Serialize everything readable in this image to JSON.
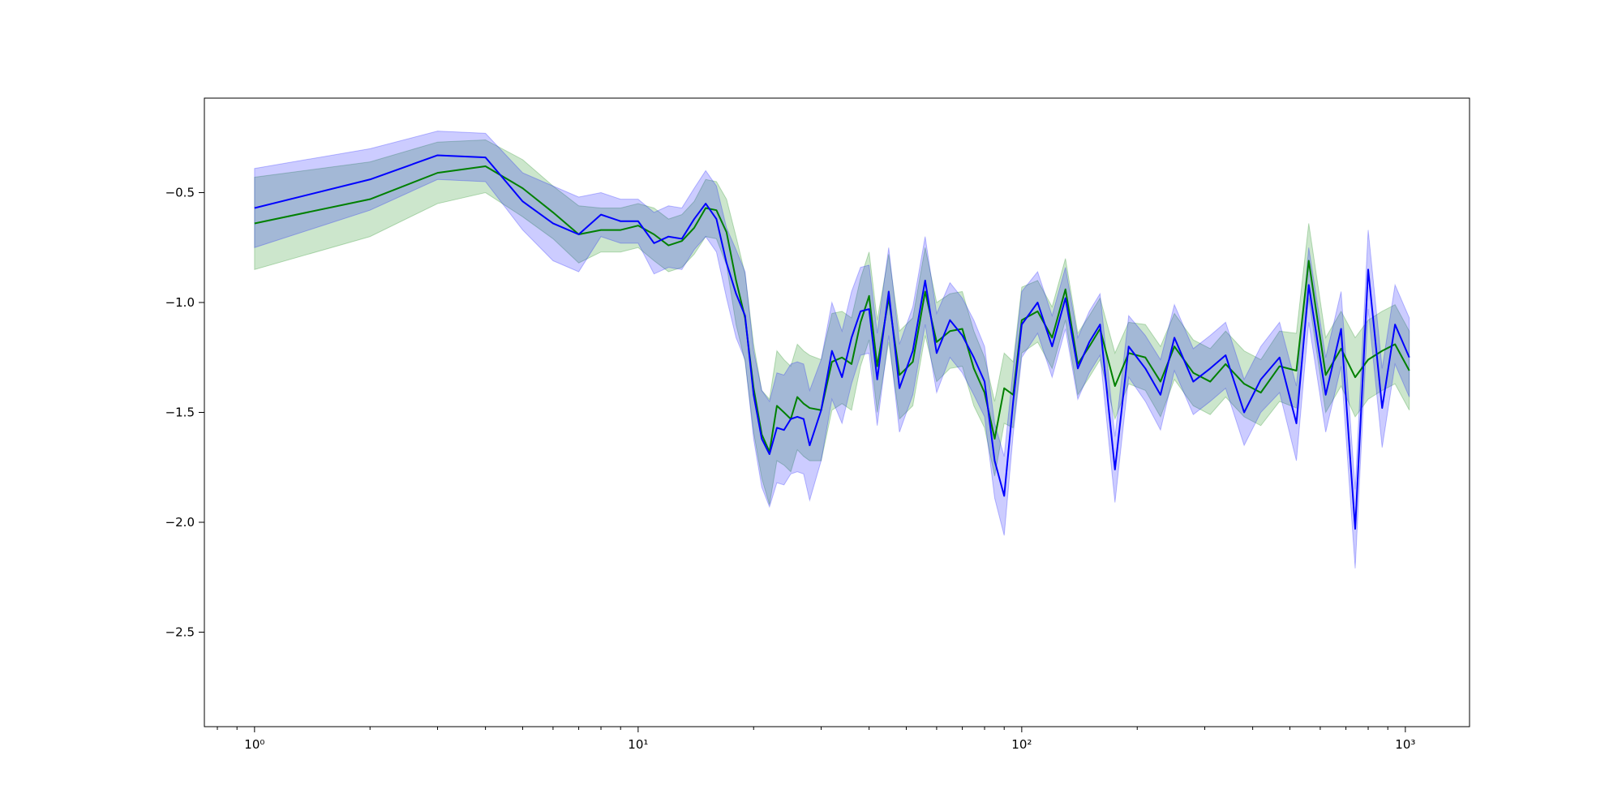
{
  "chart_data": {
    "type": "line",
    "title": "",
    "xlabel": "",
    "ylabel": "",
    "xscale": "log",
    "xlim": [
      0.74,
      1470
    ],
    "ylim": [
      -2.93,
      -0.07
    ],
    "grid": false,
    "legend": "none",
    "x_ticks": [
      {
        "value": 1,
        "label": "10⁰"
      },
      {
        "value": 10,
        "label": "10¹"
      },
      {
        "value": 100,
        "label": "10²"
      },
      {
        "value": 1000,
        "label": "10³"
      }
    ],
    "y_ticks": [
      {
        "value": -0.5,
        "label": "−0.5"
      },
      {
        "value": -1.0,
        "label": "−1.0"
      },
      {
        "value": -1.5,
        "label": "−1.5"
      },
      {
        "value": -2.0,
        "label": "−2.0"
      },
      {
        "value": -2.5,
        "label": "−2.5"
      }
    ],
    "series": [
      {
        "color": "#008000",
        "band_color": "#008000",
        "band_opacity": 0.2,
        "points": [
          [
            1,
            -0.64,
            0.21
          ],
          [
            2,
            -0.53,
            0.17
          ],
          [
            3,
            -0.41,
            0.14
          ],
          [
            4,
            -0.38,
            0.12
          ],
          [
            5,
            -0.48,
            0.13
          ],
          [
            6,
            -0.59,
            0.12
          ],
          [
            7,
            -0.69,
            0.13
          ],
          [
            8,
            -0.67,
            0.1
          ],
          [
            9,
            -0.67,
            0.1
          ],
          [
            10,
            -0.65,
            0.1
          ],
          [
            11,
            -0.69,
            0.12
          ],
          [
            12,
            -0.74,
            0.12
          ],
          [
            13,
            -0.72,
            0.12
          ],
          [
            14,
            -0.66,
            0.12
          ],
          [
            15,
            -0.57,
            0.13
          ],
          [
            16,
            -0.58,
            0.13
          ],
          [
            17,
            -0.68,
            0.15
          ],
          [
            18,
            -0.9,
            0.2
          ],
          [
            19,
            -1.07,
            0.2
          ],
          [
            20,
            -1.39,
            0.2
          ],
          [
            21,
            -1.6,
            0.2
          ],
          [
            22,
            -1.68,
            0.24
          ],
          [
            23,
            -1.47,
            0.25
          ],
          [
            24,
            -1.5,
            0.24
          ],
          [
            25,
            -1.53,
            0.24
          ],
          [
            26,
            -1.43,
            0.24
          ],
          [
            27,
            -1.46,
            0.24
          ],
          [
            28,
            -1.48,
            0.24
          ],
          [
            30,
            -1.49,
            0.23
          ],
          [
            32,
            -1.27,
            0.22
          ],
          [
            34,
            -1.25,
            0.21
          ],
          [
            36,
            -1.28,
            0.21
          ],
          [
            38,
            -1.09,
            0.2
          ],
          [
            40,
            -0.97,
            0.2
          ],
          [
            42,
            -1.29,
            0.21
          ],
          [
            45,
            -0.98,
            0.2
          ],
          [
            48,
            -1.33,
            0.2
          ],
          [
            52,
            -1.27,
            0.2
          ],
          [
            56,
            -0.95,
            0.2
          ],
          [
            60,
            -1.18,
            0.18
          ],
          [
            65,
            -1.13,
            0.17
          ],
          [
            70,
            -1.12,
            0.17
          ],
          [
            75,
            -1.3,
            0.17
          ],
          [
            80,
            -1.41,
            0.16
          ],
          [
            85,
            -1.62,
            0.17
          ],
          [
            90,
            -1.39,
            0.16
          ],
          [
            95,
            -1.42,
            0.15
          ],
          [
            100,
            -1.08,
            0.15
          ],
          [
            110,
            -1.04,
            0.14
          ],
          [
            120,
            -1.16,
            0.14
          ],
          [
            130,
            -0.94,
            0.14
          ],
          [
            140,
            -1.28,
            0.14
          ],
          [
            150,
            -1.2,
            0.14
          ],
          [
            160,
            -1.12,
            0.14
          ],
          [
            175,
            -1.38,
            0.15
          ],
          [
            190,
            -1.23,
            0.14
          ],
          [
            210,
            -1.25,
            0.15
          ],
          [
            230,
            -1.36,
            0.16
          ],
          [
            250,
            -1.2,
            0.15
          ],
          [
            280,
            -1.32,
            0.15
          ],
          [
            310,
            -1.36,
            0.15
          ],
          [
            340,
            -1.28,
            0.15
          ],
          [
            380,
            -1.37,
            0.15
          ],
          [
            420,
            -1.41,
            0.15
          ],
          [
            470,
            -1.29,
            0.16
          ],
          [
            520,
            -1.31,
            0.17
          ],
          [
            560,
            -0.81,
            0.17
          ],
          [
            620,
            -1.33,
            0.17
          ],
          [
            680,
            -1.21,
            0.17
          ],
          [
            740,
            -1.34,
            0.18
          ],
          [
            800,
            -1.26,
            0.18
          ],
          [
            870,
            -1.22,
            0.18
          ],
          [
            940,
            -1.19,
            0.18
          ],
          [
            1024,
            -1.31,
            0.18
          ]
        ]
      },
      {
        "color": "#0000ff",
        "band_color": "#0000ff",
        "band_opacity": 0.2,
        "points": [
          [
            1,
            -0.57,
            0.18
          ],
          [
            2,
            -0.44,
            0.14
          ],
          [
            3,
            -0.33,
            0.11
          ],
          [
            4,
            -0.34,
            0.11
          ],
          [
            5,
            -0.54,
            0.13
          ],
          [
            6,
            -0.64,
            0.17
          ],
          [
            7,
            -0.69,
            0.17
          ],
          [
            8,
            -0.6,
            0.1
          ],
          [
            9,
            -0.63,
            0.1
          ],
          [
            10,
            -0.63,
            0.1
          ],
          [
            11,
            -0.73,
            0.14
          ],
          [
            12,
            -0.7,
            0.14
          ],
          [
            13,
            -0.71,
            0.14
          ],
          [
            14,
            -0.62,
            0.14
          ],
          [
            15,
            -0.55,
            0.15
          ],
          [
            16,
            -0.62,
            0.15
          ],
          [
            17,
            -0.82,
            0.16
          ],
          [
            18,
            -0.96,
            0.2
          ],
          [
            19,
            -1.06,
            0.2
          ],
          [
            20,
            -1.42,
            0.2
          ],
          [
            21,
            -1.62,
            0.22
          ],
          [
            22,
            -1.69,
            0.24
          ],
          [
            23,
            -1.57,
            0.25
          ],
          [
            24,
            -1.58,
            0.25
          ],
          [
            25,
            -1.53,
            0.25
          ],
          [
            26,
            -1.52,
            0.25
          ],
          [
            27,
            -1.53,
            0.25
          ],
          [
            28,
            -1.65,
            0.25
          ],
          [
            30,
            -1.49,
            0.23
          ],
          [
            32,
            -1.22,
            0.22
          ],
          [
            34,
            -1.34,
            0.21
          ],
          [
            36,
            -1.16,
            0.21
          ],
          [
            38,
            -1.04,
            0.2
          ],
          [
            40,
            -1.03,
            0.2
          ],
          [
            42,
            -1.35,
            0.21
          ],
          [
            45,
            -0.95,
            0.2
          ],
          [
            48,
            -1.39,
            0.2
          ],
          [
            52,
            -1.22,
            0.2
          ],
          [
            56,
            -0.9,
            0.2
          ],
          [
            60,
            -1.23,
            0.18
          ],
          [
            65,
            -1.08,
            0.17
          ],
          [
            70,
            -1.15,
            0.17
          ],
          [
            75,
            -1.25,
            0.17
          ],
          [
            80,
            -1.36,
            0.16
          ],
          [
            85,
            -1.72,
            0.17
          ],
          [
            90,
            -1.88,
            0.18
          ],
          [
            95,
            -1.45,
            0.15
          ],
          [
            100,
            -1.1,
            0.15
          ],
          [
            110,
            -1.0,
            0.14
          ],
          [
            120,
            -1.2,
            0.14
          ],
          [
            130,
            -0.98,
            0.14
          ],
          [
            140,
            -1.3,
            0.14
          ],
          [
            150,
            -1.18,
            0.14
          ],
          [
            160,
            -1.1,
            0.14
          ],
          [
            175,
            -1.76,
            0.15
          ],
          [
            190,
            -1.2,
            0.14
          ],
          [
            210,
            -1.3,
            0.15
          ],
          [
            230,
            -1.42,
            0.16
          ],
          [
            250,
            -1.16,
            0.15
          ],
          [
            280,
            -1.36,
            0.15
          ],
          [
            310,
            -1.3,
            0.15
          ],
          [
            340,
            -1.24,
            0.15
          ],
          [
            380,
            -1.5,
            0.15
          ],
          [
            420,
            -1.35,
            0.15
          ],
          [
            470,
            -1.25,
            0.16
          ],
          [
            520,
            -1.55,
            0.17
          ],
          [
            560,
            -0.92,
            0.17
          ],
          [
            620,
            -1.42,
            0.17
          ],
          [
            680,
            -1.12,
            0.17
          ],
          [
            740,
            -2.03,
            0.18
          ],
          [
            800,
            -0.85,
            0.18
          ],
          [
            870,
            -1.48,
            0.18
          ],
          [
            940,
            -1.1,
            0.18
          ],
          [
            1024,
            -1.25,
            0.18
          ]
        ]
      }
    ]
  }
}
